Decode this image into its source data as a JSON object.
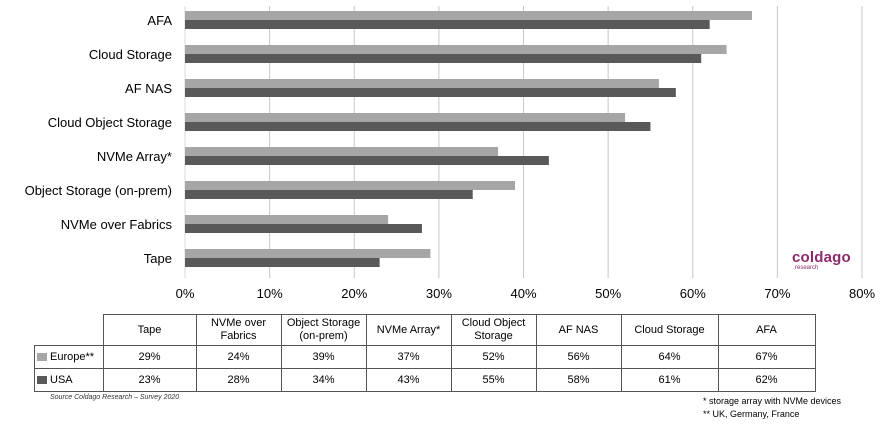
{
  "chart_data": {
    "type": "bar",
    "orientation": "horizontal",
    "categories": [
      "AFA",
      "Cloud Storage",
      "AF NAS",
      "Cloud Object Storage",
      "NVMe Array*",
      "Object Storage (on-prem)",
      "NVMe over Fabrics",
      "Tape"
    ],
    "series": [
      {
        "name": "Europe**",
        "color": "#a6a6a6",
        "values": [
          67,
          64,
          56,
          52,
          37,
          39,
          24,
          29
        ]
      },
      {
        "name": "USA",
        "color": "#595959",
        "values": [
          62,
          61,
          58,
          55,
          43,
          34,
          28,
          23
        ]
      }
    ],
    "xlim": [
      0,
      80
    ],
    "xticks": [
      "0%",
      "10%",
      "20%",
      "30%",
      "40%",
      "50%",
      "60%",
      "70%",
      "80%"
    ],
    "grid": true
  },
  "table": {
    "headers": [
      "Tape",
      "NVMe over Fabrics",
      "Object Storage (on-prem)",
      "NVMe Array*",
      "Cloud Object Storage",
      "AF NAS",
      "Cloud Storage",
      "AFA"
    ],
    "rows": [
      {
        "label": "Europe**",
        "color": "#a6a6a6",
        "cells": [
          "29%",
          "24%",
          "39%",
          "37%",
          "52%",
          "56%",
          "64%",
          "67%"
        ]
      },
      {
        "label": "USA",
        "color": "#595959",
        "cells": [
          "23%",
          "28%",
          "34%",
          "43%",
          "55%",
          "58%",
          "61%",
          "62%"
        ]
      }
    ]
  },
  "logo": {
    "text": "coldago",
    "sub": "research"
  },
  "source": "Source Coldago Research – Survey 2020",
  "notes": [
    "* storage array with NVMe devices",
    "** UK, Germany, France"
  ]
}
